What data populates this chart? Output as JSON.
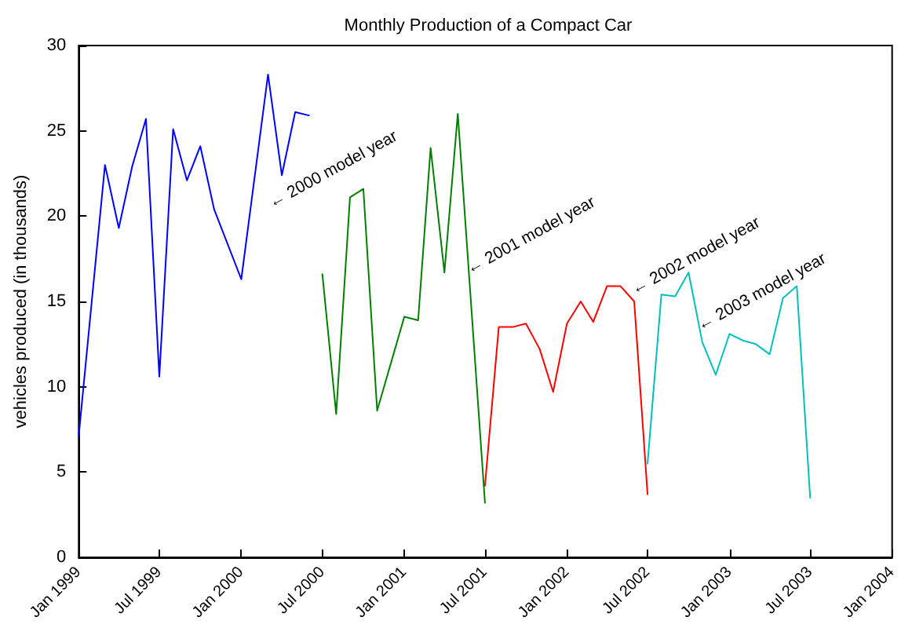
{
  "chart_data": {
    "type": "line",
    "title": "Monthly Production of a Compact Car",
    "ylabel": "vehicles produced (in thousands)",
    "xlim": [
      "1999-01",
      "2004-01"
    ],
    "xticks": [
      {
        "value": "1999-01",
        "label": "Jan 1999"
      },
      {
        "value": "1999-07",
        "label": "Jul 1999"
      },
      {
        "value": "2000-01",
        "label": "Jan 2000"
      },
      {
        "value": "2000-07",
        "label": "Jul 2000"
      },
      {
        "value": "2001-01",
        "label": "Jan 2001"
      },
      {
        "value": "2001-07",
        "label": "Jul 2001"
      },
      {
        "value": "2002-01",
        "label": "Jan 2002"
      },
      {
        "value": "2002-07",
        "label": "Jul 2002"
      },
      {
        "value": "2003-01",
        "label": "Jan 2003"
      },
      {
        "value": "2003-07",
        "label": "Jul 2003"
      },
      {
        "value": "2004-01",
        "label": "Jan 2004"
      }
    ],
    "ylim": [
      0,
      30
    ],
    "yticks": [
      0,
      5,
      10,
      15,
      20,
      25,
      30
    ],
    "grid": false,
    "marker": "none",
    "line_style": "solid",
    "series": [
      {
        "color": "#0000ff",
        "x": [
          "1999-01",
          "1999-03",
          "1999-04",
          "1999-05",
          "1999-06",
          "1999-07",
          "1999-08",
          "1999-09",
          "1999-10",
          "1999-11",
          "2000-01",
          "2000-03",
          "2000-04",
          "2000-05",
          "2000-06"
        ],
        "values": [
          7.1,
          23.0,
          19.3,
          22.9,
          25.7,
          10.6,
          25.1,
          22.1,
          24.1,
          20.4,
          16.3,
          28.3,
          22.4,
          26.1,
          25.9
        ]
      },
      {
        "color": "#008000",
        "x": [
          "2000-07",
          "2000-08",
          "2000-09",
          "2000-10",
          "2000-11",
          "2001-01",
          "2001-02",
          "2001-03",
          "2001-04",
          "2001-05",
          "2001-07"
        ],
        "values": [
          16.6,
          8.4,
          21.1,
          21.6,
          8.6,
          14.1,
          13.9,
          24.0,
          16.7,
          26.0,
          3.2
        ]
      },
      {
        "color": "#ff0000",
        "x": [
          "2001-07",
          "2001-08",
          "2001-09",
          "2001-10",
          "2001-11",
          "2001-12",
          "2002-01",
          "2002-02",
          "2002-03",
          "2002-04",
          "2002-05",
          "2002-06",
          "2002-07"
        ],
        "values": [
          4.2,
          13.5,
          13.5,
          13.7,
          12.2,
          9.7,
          13.7,
          15.0,
          13.8,
          15.9,
          15.9,
          15.0,
          3.7
        ]
      },
      {
        "color": "#00bfbf",
        "x": [
          "2002-07",
          "2002-08",
          "2002-09",
          "2002-10",
          "2002-11",
          "2002-12",
          "2003-01",
          "2003-02",
          "2003-03",
          "2003-04",
          "2003-05",
          "2003-06",
          "2003-07"
        ],
        "values": [
          5.5,
          15.4,
          15.3,
          16.7,
          12.6,
          10.7,
          13.1,
          12.7,
          12.5,
          11.9,
          15.2,
          15.9,
          3.5
        ]
      }
    ],
    "annotations": [
      "← 2000 model year",
      "← 2001 model year",
      "← 2002 model year",
      "← 2003 model year"
    ]
  }
}
